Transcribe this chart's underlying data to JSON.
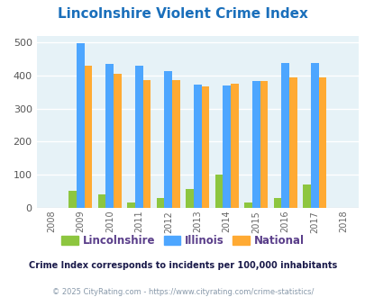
{
  "title": "Lincolnshire Violent Crime Index",
  "title_color": "#1a6fbb",
  "years": [
    2008,
    2009,
    2010,
    2011,
    2012,
    2013,
    2014,
    2015,
    2016,
    2017,
    2018
  ],
  "lincolnshire": [
    0,
    52,
    40,
    15,
    30,
    57,
    100,
    15,
    30,
    70,
    0
  ],
  "illinois": [
    0,
    498,
    435,
    428,
    414,
    373,
    370,
    383,
    438,
    438,
    0
  ],
  "national": [
    0,
    430,
    405,
    387,
    387,
    368,
    376,
    383,
    395,
    394,
    0
  ],
  "color_lincolnshire": "#8dc63f",
  "color_illinois": "#4da6ff",
  "color_national": "#ffaa33",
  "bg_color": "#e6f2f7",
  "ylim": [
    0,
    520
  ],
  "yticks": [
    0,
    100,
    200,
    300,
    400,
    500
  ],
  "grid_color": "#ffffff",
  "subtitle": "Crime Index corresponds to incidents per 100,000 inhabitants",
  "subtitle_color": "#1a1a4a",
  "footer": "© 2025 CityRating.com - https://www.cityrating.com/crime-statistics/",
  "footer_color": "#8899aa",
  "legend_lincolnshire": "Lincolnshire",
  "legend_illinois": "Illinois",
  "legend_national": "National",
  "legend_color_lincolnshire": "#5a3e8a",
  "legend_color_illinois": "#5a3e8a",
  "legend_color_national": "#5a3e8a",
  "bar_width": 0.27
}
